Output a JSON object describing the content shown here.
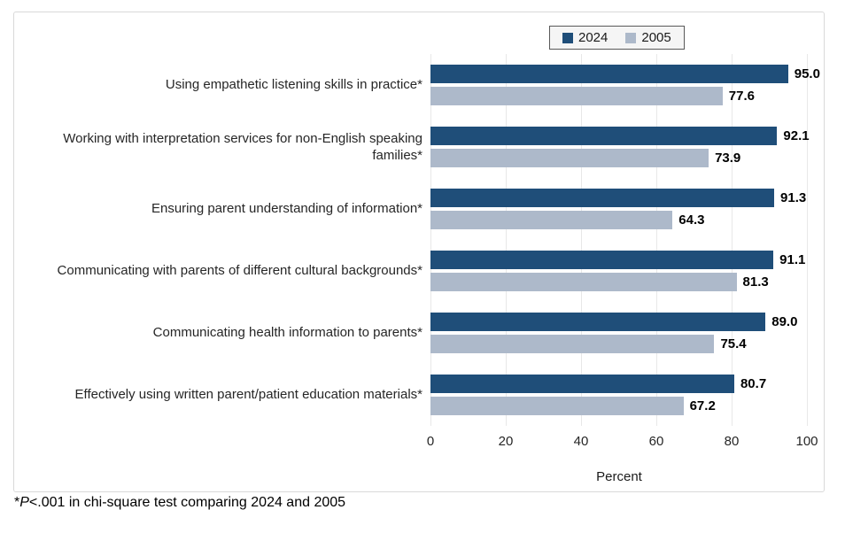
{
  "chart_data": {
    "type": "bar",
    "orientation": "horizontal",
    "title": "",
    "xlabel": "Percent",
    "xlim": [
      0,
      100
    ],
    "xticks": [
      0,
      20,
      40,
      60,
      80,
      100
    ],
    "grid": true,
    "legend_position": "top",
    "categories": [
      "Using empathetic listening skills in practice*",
      "Working with interpretation services for non-English speaking families*",
      "Ensuring parent understanding of information*",
      "Communicating with parents of different cultural backgrounds*",
      "Communicating health information to parents*",
      "Effectively using written parent/patient education materials*"
    ],
    "series": [
      {
        "name": "2024",
        "color": "#1F4E79",
        "values": [
          95.0,
          92.1,
          91.3,
          91.1,
          89.0,
          80.7
        ],
        "labels": [
          "95.0",
          "92.1",
          "91.3",
          "91.1",
          "89.0",
          "80.7"
        ]
      },
      {
        "name": "2005",
        "color": "#ADB9CA",
        "values": [
          77.6,
          73.9,
          64.3,
          81.3,
          75.4,
          67.2
        ],
        "labels": [
          "77.6",
          "73.9",
          "64.3",
          "81.3",
          "75.4",
          "67.2"
        ]
      }
    ]
  },
  "colors": {
    "series_2024": "#1F4E79",
    "series_2005": "#ADB9CA",
    "gridline": "#E8E8E8",
    "chart_border": "#D9D9D9",
    "legend_border": "#595959"
  },
  "footnote": {
    "asterisk": "*",
    "p_italic": "P",
    "rest": "<.001 in chi-square test comparing 2024 and 2005"
  }
}
